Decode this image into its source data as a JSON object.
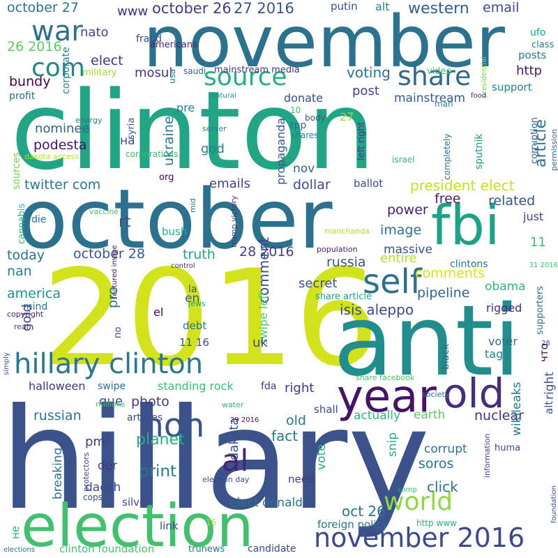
{
  "words": [
    {
      "text": "hillary",
      "color": "#3b528b"
    },
    {
      "text": "clinton",
      "color": "#21a585"
    },
    {
      "text": "november",
      "color": "#2c728e"
    },
    {
      "text": "october",
      "color": "#2c728e"
    },
    {
      "text": "2016",
      "color": "#d2e21b"
    },
    {
      "text": "anti",
      "color": "#218e8d"
    },
    {
      "text": "election",
      "color": "#44bf70"
    },
    {
      "text": "fbi",
      "color": "#1fa187"
    },
    {
      "text": "hillary clinton",
      "color": "#2a788e"
    },
    {
      "text": "year",
      "color": "#471365"
    },
    {
      "text": "old",
      "color": "#472d7b"
    },
    {
      "text": "november 2016",
      "color": "#3e4989"
    },
    {
      "text": "non",
      "color": "#3b528b"
    },
    {
      "text": "al",
      "color": "#482475"
    },
    {
      "text": "self",
      "color": "#2d708e"
    },
    {
      "text": "war",
      "color": "#2d708e"
    },
    {
      "text": "com",
      "color": "#25858e"
    },
    {
      "text": "source",
      "color": "#28ae80"
    },
    {
      "text": "share",
      "color": "#31688e"
    },
    {
      "text": "world",
      "color": "#8fd744"
    },
    {
      "text": "october 27",
      "color": "#2d708e"
    },
    {
      "text": "26 2016",
      "color": "#5ec962"
    },
    {
      "text": "www",
      "color": "#472d7b"
    },
    {
      "text": "october 26",
      "color": "#443a83"
    },
    {
      "text": "27 2016",
      "color": "#39568c"
    },
    {
      "text": "putin",
      "color": "#3b528b"
    },
    {
      "text": "alt",
      "color": "#25858e"
    },
    {
      "text": "western",
      "color": "#365c8d"
    },
    {
      "text": "email",
      "color": "#404688"
    },
    {
      "text": "ufo",
      "color": "#1fa187"
    },
    {
      "text": "class",
      "color": "#2a788e"
    },
    {
      "text": "posts",
      "color": "#287d8e"
    },
    {
      "text": "presidential",
      "color": "#7ad151"
    },
    {
      "text": "fraud",
      "color": "#3e4989"
    },
    {
      "text": "americans",
      "color": "#481f70"
    },
    {
      "text": "nato",
      "color": "#414487"
    },
    {
      "text": "elect",
      "color": "#46337f"
    },
    {
      "text": "military",
      "color": "#a0da39"
    },
    {
      "text": "corporate",
      "color": "#27808e"
    },
    {
      "text": "mosul",
      "color": "#46327e"
    },
    {
      "text": "bundy",
      "color": "#440154"
    },
    {
      "text": "profit",
      "color": "#2e6e8e"
    },
    {
      "text": "saudi",
      "color": "#355f8d"
    },
    {
      "text": "usa",
      "color": "#2a768e"
    },
    {
      "text": "mainstream media",
      "color": "#46337f"
    },
    {
      "text": "video",
      "color": "#3fbc73"
    },
    {
      "text": "voting",
      "color": "#2c728e"
    },
    {
      "text": "post",
      "color": "#414487"
    },
    {
      "text": "http",
      "color": "#48186a"
    },
    {
      "text": "support",
      "color": "#25858e"
    },
    {
      "text": "article",
      "color": "#2e6e8e"
    },
    {
      "text": "corruption",
      "color": "#33638d"
    },
    {
      "text": "permission",
      "color": "#31688e"
    },
    {
      "text": "food",
      "color": "#482878"
    },
    {
      "text": "natural",
      "color": "#25848e"
    },
    {
      "text": "man",
      "color": "#26828e"
    },
    {
      "text": "mainstream",
      "color": "#38588c"
    },
    {
      "text": "donate",
      "color": "#3e4989"
    },
    {
      "text": "syria",
      "color": "#365c8d"
    },
    {
      "text": "energy",
      "color": "#287c8e"
    },
    {
      "text": "pre",
      "color": "#27808e"
    },
    {
      "text": "10",
      "color": "#3dbc74"
    },
    {
      "text": "left right",
      "color": "#443b84"
    },
    {
      "text": "27",
      "color": "#9bd93c"
    },
    {
      "text": "tpp",
      "color": "#2f6b8e"
    },
    {
      "text": "nominee",
      "color": "#33638d"
    },
    {
      "text": "podesta",
      "color": "#471164"
    },
    {
      "text": "на",
      "color": "#3e4a89"
    },
    {
      "text": "ukraine",
      "color": "#2a768e"
    },
    {
      "text": "god",
      "color": "#27808e"
    },
    {
      "text": "server",
      "color": "#297a8e"
    },
    {
      "text": "corporations",
      "color": "#39b977"
    },
    {
      "text": "dakota access",
      "color": "#b8de29"
    },
    {
      "text": "body",
      "color": "#375a8c"
    },
    {
      "text": "shares",
      "color": "#25848e"
    },
    {
      "text": "israel",
      "color": "#35b779"
    },
    {
      "text": "completely",
      "color": "#2c718e"
    },
    {
      "text": "sputnik",
      "color": "#1f968b"
    },
    {
      "text": "propaganda",
      "color": "#39568c"
    },
    {
      "text": "nov",
      "color": "#33638d"
    },
    {
      "text": "sources",
      "color": "#7ad151"
    },
    {
      "text": "twitter com",
      "color": "#2b748e"
    },
    {
      "text": "emails",
      "color": "#414487"
    },
    {
      "text": "org",
      "color": "#440154"
    },
    {
      "text": "dollar",
      "color": "#3e4a89"
    },
    {
      "text": "ballot",
      "color": "#3e4989"
    },
    {
      "text": "president elect",
      "color": "#c0df25"
    },
    {
      "text": "cannabis",
      "color": "#2fb47c"
    },
    {
      "text": "die",
      "color": "#2d708e"
    },
    {
      "text": "vaccine",
      "color": "#4ac16d"
    },
    {
      "text": "mid",
      "color": "#2a788e"
    },
    {
      "text": "trump victory",
      "color": "#46337f"
    },
    {
      "text": "power",
      "color": "#481c6e"
    },
    {
      "text": "free",
      "color": "#481d6f"
    },
    {
      "text": "related",
      "color": "#3b518b"
    },
    {
      "text": "just",
      "color": "#414487"
    },
    {
      "text": "rt",
      "color": "#3b528b"
    },
    {
      "text": "image",
      "color": "#2d708e"
    },
    {
      "text": "manchanda",
      "color": "#addc30"
    },
    {
      "text": "today",
      "color": "#2d708e"
    },
    {
      "text": "october 28",
      "color": "#3b528b"
    },
    {
      "text": "bush",
      "color": "#26ad81"
    },
    {
      "text": "28 2016",
      "color": "#433e85"
    },
    {
      "text": "massive",
      "color": "#3b528b"
    },
    {
      "text": "population",
      "color": "#482071"
    },
    {
      "text": "11",
      "color": "#3fbc73"
    },
    {
      "text": "nan",
      "color": "#25838e"
    },
    {
      "text": "truth",
      "color": "#20a386"
    },
    {
      "text": "russia",
      "color": "#3b528b"
    },
    {
      "text": "control",
      "color": "#46337f"
    },
    {
      "text": "entire",
      "color": "#b5de2b"
    },
    {
      "text": "clintons",
      "color": "#2b758e"
    },
    {
      "text": "31 2016",
      "color": "#3dbc74"
    },
    {
      "text": "comments",
      "color": "#d5e21a"
    },
    {
      "text": "america",
      "color": "#21918c"
    },
    {
      "text": "featured image",
      "color": "#481467"
    },
    {
      "text": "secret",
      "color": "#3b528b"
    },
    {
      "text": "pipeline",
      "color": "#33638d"
    },
    {
      "text": "obama",
      "color": "#2fb47c"
    },
    {
      "text": "mind",
      "color": "#2c728e"
    },
    {
      "text": "pro",
      "color": "#2a788e"
    },
    {
      "text": "comment",
      "color": "#3e4989"
    },
    {
      "text": "share article",
      "color": "#20a386"
    },
    {
      "text": "isis aleppo",
      "color": "#3e4989"
    },
    {
      "text": "copyright",
      "color": "#48186a"
    },
    {
      "text": "el",
      "color": "#440154"
    },
    {
      "text": "la",
      "color": "#3e4a89"
    },
    {
      "text": "jews",
      "color": "#20a386"
    },
    {
      "text": "en",
      "color": "#35608d"
    },
    {
      "text": "swipe left",
      "color": "#52c569"
    },
    {
      "text": "debt",
      "color": "#2d708e"
    },
    {
      "text": "rigged",
      "color": "#472a7a"
    },
    {
      "text": "supporters",
      "color": "#2c728e"
    },
    {
      "text": "gold",
      "color": "#414487"
    },
    {
      "text": "по",
      "color": "#3e4989"
    },
    {
      "text": "real",
      "color": "#414487"
    },
    {
      "text": "uk",
      "color": "#3e4989"
    },
    {
      "text": "11 16",
      "color": "#3b528b"
    },
    {
      "text": "black",
      "color": "#31688e"
    },
    {
      "text": "voter",
      "color": "#2f6b8e"
    },
    {
      "text": "28",
      "color": "#3b528b"
    },
    {
      "text": "tags",
      "color": "#26828e"
    },
    {
      "text": "что",
      "color": "#440154"
    },
    {
      "text": "simply",
      "color": "#39568c"
    },
    {
      "text": "halloween",
      "color": "#46337f"
    },
    {
      "text": "swipe",
      "color": "#2c718e"
    },
    {
      "text": "standing rock",
      "color": "#3fbc73"
    },
    {
      "text": "fda",
      "color": "#453781"
    },
    {
      "text": "right",
      "color": "#46337f"
    },
    {
      "text": "share facebook",
      "color": "#48c16e"
    },
    {
      "text": "right (vertical)",
      "color": "#3b528b"
    },
    {
      "text": "alt (vertical)",
      "color": "#3b528b"
    },
    {
      "text": "que",
      "color": "#3b528b"
    },
    {
      "text": "society",
      "color": "#2a788e"
    },
    {
      "text": "russian",
      "color": "#2b748e"
    },
    {
      "text": "photo",
      "color": "#443983"
    },
    {
      "text": "millions",
      "color": "#4ec36b"
    },
    {
      "text": "shall",
      "color": "#3e4a89"
    },
    {
      "text": "earth",
      "color": "#5ec962"
    },
    {
      "text": "nuclear",
      "color": "#46337f"
    },
    {
      "text": "articles",
      "color": "#3e4989"
    },
    {
      "text": "water",
      "color": "#31b57b"
    },
    {
      "text": "old (small)",
      "color": "#2a788e"
    },
    {
      "text": "actually",
      "color": "#2fb47c"
    },
    {
      "text": "dakota",
      "color": "#3b528b"
    },
    {
      "text": "pm",
      "color": "#453781"
    },
    {
      "text": "planet",
      "color": "#26ad81"
    },
    {
      "text": "29 2016",
      "color": "#471365"
    },
    {
      "text": "fact",
      "color": "#2a788e"
    },
    {
      "text": "snip",
      "color": "#26ad81"
    },
    {
      "text": "corrupt",
      "color": "#2c728e"
    },
    {
      "text": "vote",
      "color": "#26ad81"
    },
    {
      "text": "wikileaks",
      "color": "#2a788e"
    },
    {
      "text": "soros",
      "color": "#2c728e"
    },
    {
      "text": "huma",
      "color": "#3e4989"
    },
    {
      "text": "foundation",
      "color": "#3e4989"
    },
    {
      "text": "ex",
      "color": "#3e4989"
    },
    {
      "text": "der",
      "color": "#443a83"
    },
    {
      "text": "protectors",
      "color": "#3e4989"
    },
    {
      "text": "print",
      "color": "#2a788e"
    },
    {
      "text": "breaking",
      "color": "#2c728e"
    },
    {
      "text": "click",
      "color": "#2c728e"
    },
    {
      "text": "information",
      "color": "#3e4989"
    },
    {
      "text": "cops",
      "color": "#3e4989"
    },
    {
      "text": "election day",
      "color": "#3e4989"
    },
    {
      "text": "need",
      "color": "#443983"
    },
    {
      "text": "camp",
      "color": "#35b779"
    },
    {
      "text": "daesh",
      "color": "#3e4989"
    },
    {
      "text": "silver",
      "color": "#3e4989"
    },
    {
      "text": "elect donald",
      "color": "#2c728e"
    },
    {
      "text": "oct 26",
      "color": "#2c728e"
    },
    {
      "text": "не",
      "color": "#2cb17e"
    },
    {
      "text": "link",
      "color": "#3e4989"
    },
    {
      "text": "16",
      "color": "#b5de2b"
    },
    {
      "text": "foreign policy",
      "color": "#2c728e"
    },
    {
      "text": "http www",
      "color": "#26ad81"
    },
    {
      "text": "elections",
      "color": "#2c728e"
    },
    {
      "text": "clinton foundation",
      "color": "#44bf70"
    },
    {
      "text": "trunews",
      "color": "#2c728e"
    },
    {
      "text": "candidate",
      "color": "#3e4989"
    }
  ]
}
